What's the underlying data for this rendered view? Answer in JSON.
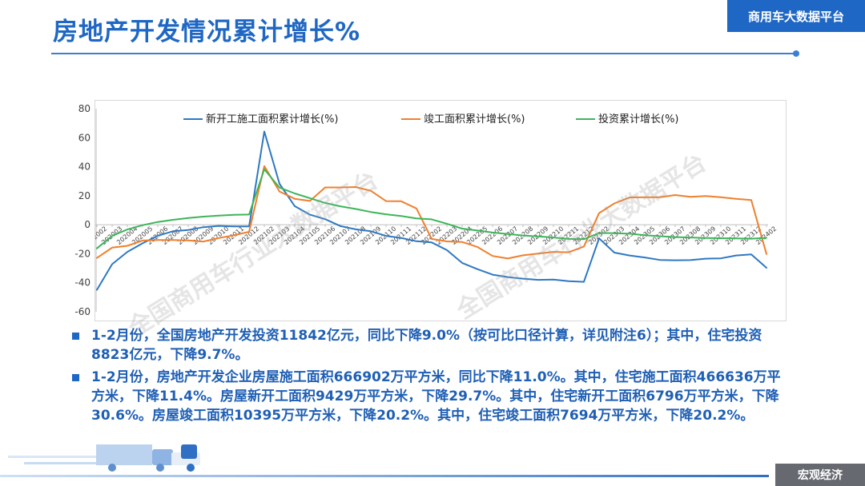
{
  "header": {
    "title": "房地产开发情况累计增长%",
    "platform": "商用车大数据平台"
  },
  "footer": {
    "section": "宏观经济"
  },
  "watermark": {
    "text": "全国商用车行业大数据平台"
  },
  "bullets": [
    "1-2月份，全国房地产开发投资11842亿元，同比下降9.0%（按可比口径计算，详见附注6）；其中，住宅投资8823亿元，下降9.7%。",
    "1-2月份，房地产开发企业房屋施工面积666902万平方米，同比下降11.0%。其中，住宅施工面积466636万平方米，下降11.4%。房屋新开工面积9429万平方米，下降29.7%。其中，住宅新开工面积6796万平方米，下降30.6%。房屋竣工面积10395万平方米，下降20.2%。其中，住宅竣工面积7694万平方米，下降20.2%。"
  ],
  "colors": {
    "accent": "#1f67c4",
    "footer_badge": "#666a70"
  },
  "chart_data": {
    "type": "line",
    "title": "",
    "xlabel": "",
    "ylabel": "",
    "ylim": [
      -60,
      80
    ],
    "yticks": [
      -60,
      -40,
      -20,
      0,
      20,
      40,
      60,
      80
    ],
    "grid": false,
    "legend_position": "top",
    "categories": [
      "202002",
      "202003",
      "202004",
      "202005",
      "202006",
      "202007",
      "202008",
      "202009",
      "202010",
      "202011",
      "202012",
      "202102",
      "202103",
      "202104",
      "202105",
      "202106",
      "202107",
      "202108",
      "202109",
      "202110",
      "202111",
      "202112",
      "202202",
      "202203",
      "202204",
      "202205",
      "202206",
      "202207",
      "202208",
      "202209",
      "202210",
      "202211",
      "202212",
      "202302",
      "202303",
      "202304",
      "202305",
      "202306",
      "202307",
      "202308",
      "202309",
      "202310",
      "202311",
      "202312",
      "202402"
    ],
    "tick_labels": [
      "202002",
      "202003",
      "202004",
      "202005",
      "202006",
      "202007",
      "202008",
      "202009",
      "202010",
      "202011",
      "202012",
      "202102",
      "202103",
      "202104",
      "202105",
      "202106",
      "202107",
      "202108",
      "202109",
      "202110",
      "202111",
      "202112",
      "202202",
      "202203",
      "202204",
      "202205",
      "202206",
      "202207",
      "202208",
      "202209",
      "202210",
      "202211",
      "202212",
      "202302",
      "202303",
      "202304",
      "202305",
      "202306",
      "202307",
      "202308",
      "202309",
      "202310",
      "202311",
      "202312",
      "202402"
    ],
    "series": [
      {
        "name": "新开工施工面积累计增长(%)",
        "color": "#2e78c2",
        "values": [
          -44.9,
          -27.2,
          -18.7,
          -12.8,
          -7.6,
          -4.5,
          -3.6,
          -1.7,
          -0.8,
          -1.2,
          -1.2,
          64.3,
          28.2,
          12.8,
          6.9,
          3.8,
          -0.9,
          -3.2,
          -4.5,
          -7.7,
          -9.1,
          -11.4,
          -12.2,
          -17.5,
          -26.3,
          -30.6,
          -34.4,
          -36.1,
          -37.2,
          -38.0,
          -37.8,
          -38.9,
          -39.4,
          -9.4,
          -19.2,
          -21.2,
          -22.6,
          -24.3,
          -24.5,
          -24.4,
          -23.4,
          -23.2,
          -21.2,
          -20.4,
          -29.7
        ]
      },
      {
        "name": "竣工面积累计增长(%)",
        "color": "#f07f2c",
        "values": [
          -22.9,
          -15.8,
          -14.5,
          -10.9,
          -10.5,
          -10.5,
          -10.8,
          -11.6,
          -9.2,
          -7.3,
          -4.9,
          40.4,
          22.9,
          17.9,
          16.4,
          25.7,
          25.7,
          26.0,
          23.4,
          16.3,
          16.2,
          11.2,
          -9.8,
          -11.5,
          -11.9,
          -15.3,
          -21.5,
          -23.3,
          -21.1,
          -19.9,
          -18.7,
          -19.0,
          -15.0,
          8.0,
          14.7,
          18.8,
          19.0,
          19.0,
          20.5,
          19.2,
          19.8,
          19.0,
          17.9,
          17.0,
          -20.2
        ]
      },
      {
        "name": "投资累计增长(%)",
        "color": "#3cb55a",
        "values": [
          -16.3,
          -7.7,
          -3.3,
          -0.3,
          1.9,
          3.4,
          4.6,
          5.6,
          6.3,
          6.8,
          7.0,
          38.3,
          25.6,
          21.6,
          18.3,
          15.0,
          12.7,
          10.9,
          8.8,
          7.2,
          6.0,
          4.4,
          3.7,
          0.7,
          -2.7,
          -4.0,
          -5.4,
          -6.4,
          -7.4,
          -8.0,
          -8.8,
          -9.8,
          -10.0,
          -5.7,
          -5.8,
          -6.2,
          -7.2,
          -7.9,
          -8.5,
          -8.8,
          -9.1,
          -9.3,
          -9.4,
          -9.6,
          -9.0
        ]
      }
    ]
  }
}
